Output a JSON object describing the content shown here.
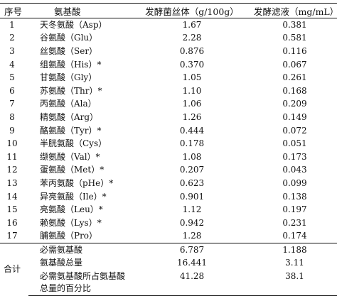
{
  "headers": {
    "no": "序号",
    "amino_acid": "氨基酸",
    "mycelium": "发酵菌丝体（g/100g）",
    "filtrate": "发酵滤液（mg/mL）"
  },
  "rows": [
    {
      "no": "1",
      "name": "天冬氨酸（Asp）",
      "mycelium": "1.67",
      "filtrate": "0.381"
    },
    {
      "no": "2",
      "name": "谷氨酸（Glu）",
      "mycelium": "2.28",
      "filtrate": "0.581"
    },
    {
      "no": "3",
      "name": "丝氨酸（Ser）",
      "mycelium": "0.876",
      "filtrate": "0.116"
    },
    {
      "no": "4",
      "name": "组氨酸（His）*",
      "mycelium": "0.370",
      "filtrate": "0.067"
    },
    {
      "no": "5",
      "name": "甘氨酸（Gly）",
      "mycelium": "1.05",
      "filtrate": "0.261"
    },
    {
      "no": "6",
      "name": "苏氨酸（Thr）*",
      "mycelium": "1.10",
      "filtrate": "0.168"
    },
    {
      "no": "7",
      "name": "丙氨酸（Ala）",
      "mycelium": "1.06",
      "filtrate": "0.209"
    },
    {
      "no": "8",
      "name": "精氨酸（Arg）",
      "mycelium": "1.26",
      "filtrate": "0.149"
    },
    {
      "no": "9",
      "name": "酪氨酸（Tyr）*",
      "mycelium": "0.444",
      "filtrate": "0.072"
    },
    {
      "no": "10",
      "name": "半胱氨酸（Cys）",
      "mycelium": "0.178",
      "filtrate": "0.051"
    },
    {
      "no": "11",
      "name": "缬氨酸（Val）*",
      "mycelium": "1.08",
      "filtrate": "0.173"
    },
    {
      "no": "12",
      "name": "蛋氨酸（Met）*",
      "mycelium": "0.207",
      "filtrate": "0.043"
    },
    {
      "no": "13",
      "name": "苯丙氨酸（pHe）*",
      "mycelium": "0.623",
      "filtrate": "0.099"
    },
    {
      "no": "14",
      "name": "异亮氨酸（Ile）*",
      "mycelium": "0.901",
      "filtrate": "0.138"
    },
    {
      "no": "15",
      "name": "亮氨酸（Leu）*",
      "mycelium": "1.12",
      "filtrate": "0.197"
    },
    {
      "no": "16",
      "name": "赖氨酸（Lys）*",
      "mycelium": "0.942",
      "filtrate": "0.231"
    },
    {
      "no": "17",
      "name": "脯氨酸（Pro）",
      "mycelium": "1.28",
      "filtrate": "0.174"
    }
  ],
  "summary": {
    "label": "合计",
    "essential": {
      "name": "必需氨基酸",
      "mycelium": "6.787",
      "filtrate": "1.188"
    },
    "total": {
      "name": "氨基酸总量",
      "mycelium": "16.441",
      "filtrate": "3.11"
    },
    "ratio": {
      "name": "必需氨基酸所占氨基酸总量的百分比",
      "mycelium": "41.28",
      "filtrate": "38.1"
    }
  }
}
